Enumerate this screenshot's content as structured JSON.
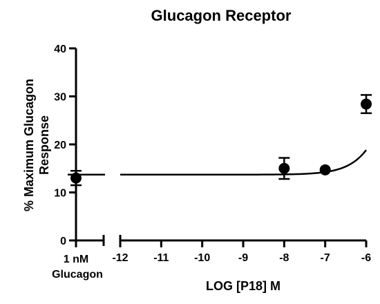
{
  "chart_data": {
    "type": "scatter",
    "title": "Glucagon Receptor",
    "xlabel": "LOG [P18] M",
    "ylabel_lines": [
      "% Maximum Glucagon",
      "Response"
    ],
    "ylim": [
      0,
      40
    ],
    "yticks": [
      0,
      10,
      20,
      30,
      40
    ],
    "xlim": [
      -12,
      -6
    ],
    "xticks": [
      -12,
      -11,
      -10,
      -9,
      -8,
      -7,
      -6
    ],
    "reference": {
      "label_lines": [
        "1 nM",
        "Glucagon"
      ],
      "y": 13.0,
      "err": 1.5,
      "line_y": 13.7
    },
    "points": [
      {
        "x": -8,
        "y": 15.0,
        "err": 2.2
      },
      {
        "x": -7,
        "y": 14.7,
        "err": 0
      },
      {
        "x": -6,
        "y": 28.4,
        "err": 1.9
      }
    ],
    "fit": {
      "bottom": 13.7,
      "top": 100,
      "log_ec50": -4.8,
      "hill": 1.0
    }
  }
}
